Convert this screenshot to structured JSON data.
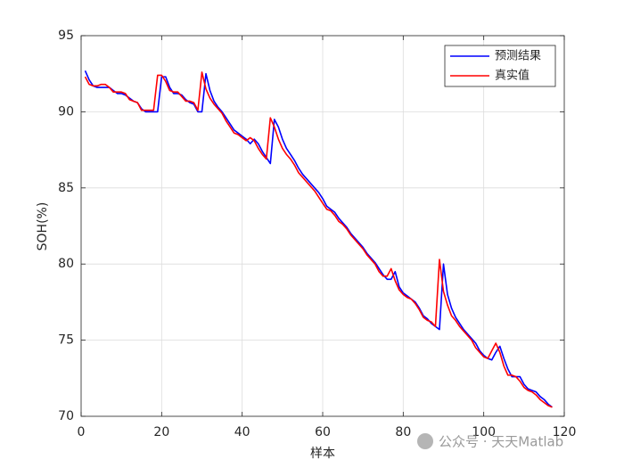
{
  "chart_data": {
    "type": "line",
    "xlabel": "样本",
    "ylabel": "SOH(%)",
    "watermark": "公众号 · 天天Matlab",
    "x": [
      1,
      2,
      3,
      4,
      5,
      6,
      7,
      8,
      9,
      10,
      11,
      12,
      13,
      14,
      15,
      16,
      17,
      18,
      19,
      20,
      21,
      22,
      23,
      24,
      25,
      26,
      27,
      28,
      29,
      30,
      31,
      32,
      33,
      34,
      35,
      36,
      37,
      38,
      39,
      40,
      41,
      42,
      43,
      44,
      45,
      46,
      47,
      48,
      49,
      50,
      51,
      52,
      53,
      54,
      55,
      56,
      57,
      58,
      59,
      60,
      61,
      62,
      63,
      64,
      65,
      66,
      67,
      68,
      69,
      70,
      71,
      72,
      73,
      74,
      75,
      76,
      77,
      78,
      79,
      80,
      81,
      82,
      83,
      84,
      85,
      86,
      87,
      88,
      89,
      90,
      91,
      92,
      93,
      94,
      95,
      96,
      97,
      98,
      99,
      100,
      101,
      102,
      103,
      104,
      105,
      106,
      107,
      108,
      109,
      110,
      111,
      112,
      113,
      114,
      115,
      116,
      117
    ],
    "series": [
      {
        "name": "预测结果",
        "color": "#0000ff",
        "values": [
          92.7,
          92.1,
          91.7,
          91.6,
          91.6,
          91.6,
          91.6,
          91.4,
          91.2,
          91.2,
          91.1,
          90.9,
          90.7,
          90.6,
          90.2,
          90.0,
          90.0,
          90.0,
          90.0,
          92.3,
          92.3,
          91.6,
          91.2,
          91.2,
          91.1,
          90.8,
          90.6,
          90.5,
          90.0,
          90.0,
          92.5,
          91.4,
          90.7,
          90.3,
          90.0,
          89.6,
          89.2,
          88.8,
          88.6,
          88.4,
          88.2,
          87.9,
          88.2,
          87.9,
          87.4,
          87.0,
          86.6,
          89.5,
          89.0,
          88.2,
          87.6,
          87.2,
          86.8,
          86.3,
          85.9,
          85.6,
          85.3,
          85.0,
          84.7,
          84.3,
          83.8,
          83.6,
          83.4,
          83.0,
          82.7,
          82.4,
          82.0,
          81.7,
          81.4,
          81.1,
          80.7,
          80.4,
          80.1,
          79.7,
          79.3,
          79.0,
          79.0,
          79.5,
          78.5,
          78.1,
          77.9,
          77.7,
          77.5,
          77.1,
          76.6,
          76.4,
          76.1,
          75.9,
          75.7,
          80.0,
          78.0,
          77.1,
          76.5,
          76.1,
          75.7,
          75.4,
          75.1,
          74.8,
          74.3,
          74.0,
          73.8,
          73.7,
          74.2,
          74.6,
          73.8,
          73.1,
          72.6,
          72.6,
          72.6,
          72.1,
          71.8,
          71.7,
          71.6,
          71.3,
          71.1,
          70.8,
          70.6
        ]
      },
      {
        "name": "真实值",
        "color": "#ff0000",
        "values": [
          92.3,
          91.8,
          91.7,
          91.7,
          91.8,
          91.8,
          91.6,
          91.3,
          91.3,
          91.3,
          91.2,
          90.8,
          90.7,
          90.6,
          90.1,
          90.1,
          90.1,
          90.1,
          92.4,
          92.4,
          92.0,
          91.4,
          91.3,
          91.3,
          91.0,
          90.7,
          90.7,
          90.6,
          90.1,
          92.6,
          91.5,
          90.9,
          90.5,
          90.2,
          89.9,
          89.4,
          89.0,
          88.6,
          88.5,
          88.3,
          88.1,
          88.3,
          88.1,
          87.6,
          87.2,
          86.9,
          89.6,
          89.0,
          88.2,
          87.6,
          87.2,
          86.9,
          86.5,
          86.0,
          85.7,
          85.4,
          85.1,
          84.8,
          84.4,
          84.0,
          83.6,
          83.5,
          83.2,
          82.8,
          82.6,
          82.3,
          81.9,
          81.6,
          81.3,
          81.0,
          80.6,
          80.3,
          80.0,
          79.5,
          79.2,
          79.2,
          79.7,
          78.9,
          78.3,
          78.0,
          77.8,
          77.7,
          77.4,
          77.0,
          76.5,
          76.3,
          76.2,
          75.9,
          80.3,
          78.2,
          77.3,
          76.6,
          76.3,
          75.9,
          75.6,
          75.3,
          75.0,
          74.5,
          74.2,
          73.9,
          73.8,
          74.3,
          74.8,
          74.2,
          73.3,
          72.7,
          72.7,
          72.6,
          72.3,
          71.9,
          71.7,
          71.6,
          71.4,
          71.1,
          70.9,
          70.7,
          70.6
        ]
      }
    ],
    "xlim": [
      0,
      120
    ],
    "xticks": [
      0,
      20,
      40,
      60,
      80,
      100,
      120
    ],
    "ylim": [
      70,
      95
    ],
    "yticks": [
      70,
      75,
      80,
      85,
      90,
      95
    ],
    "grid": true,
    "legend": "northeast"
  }
}
